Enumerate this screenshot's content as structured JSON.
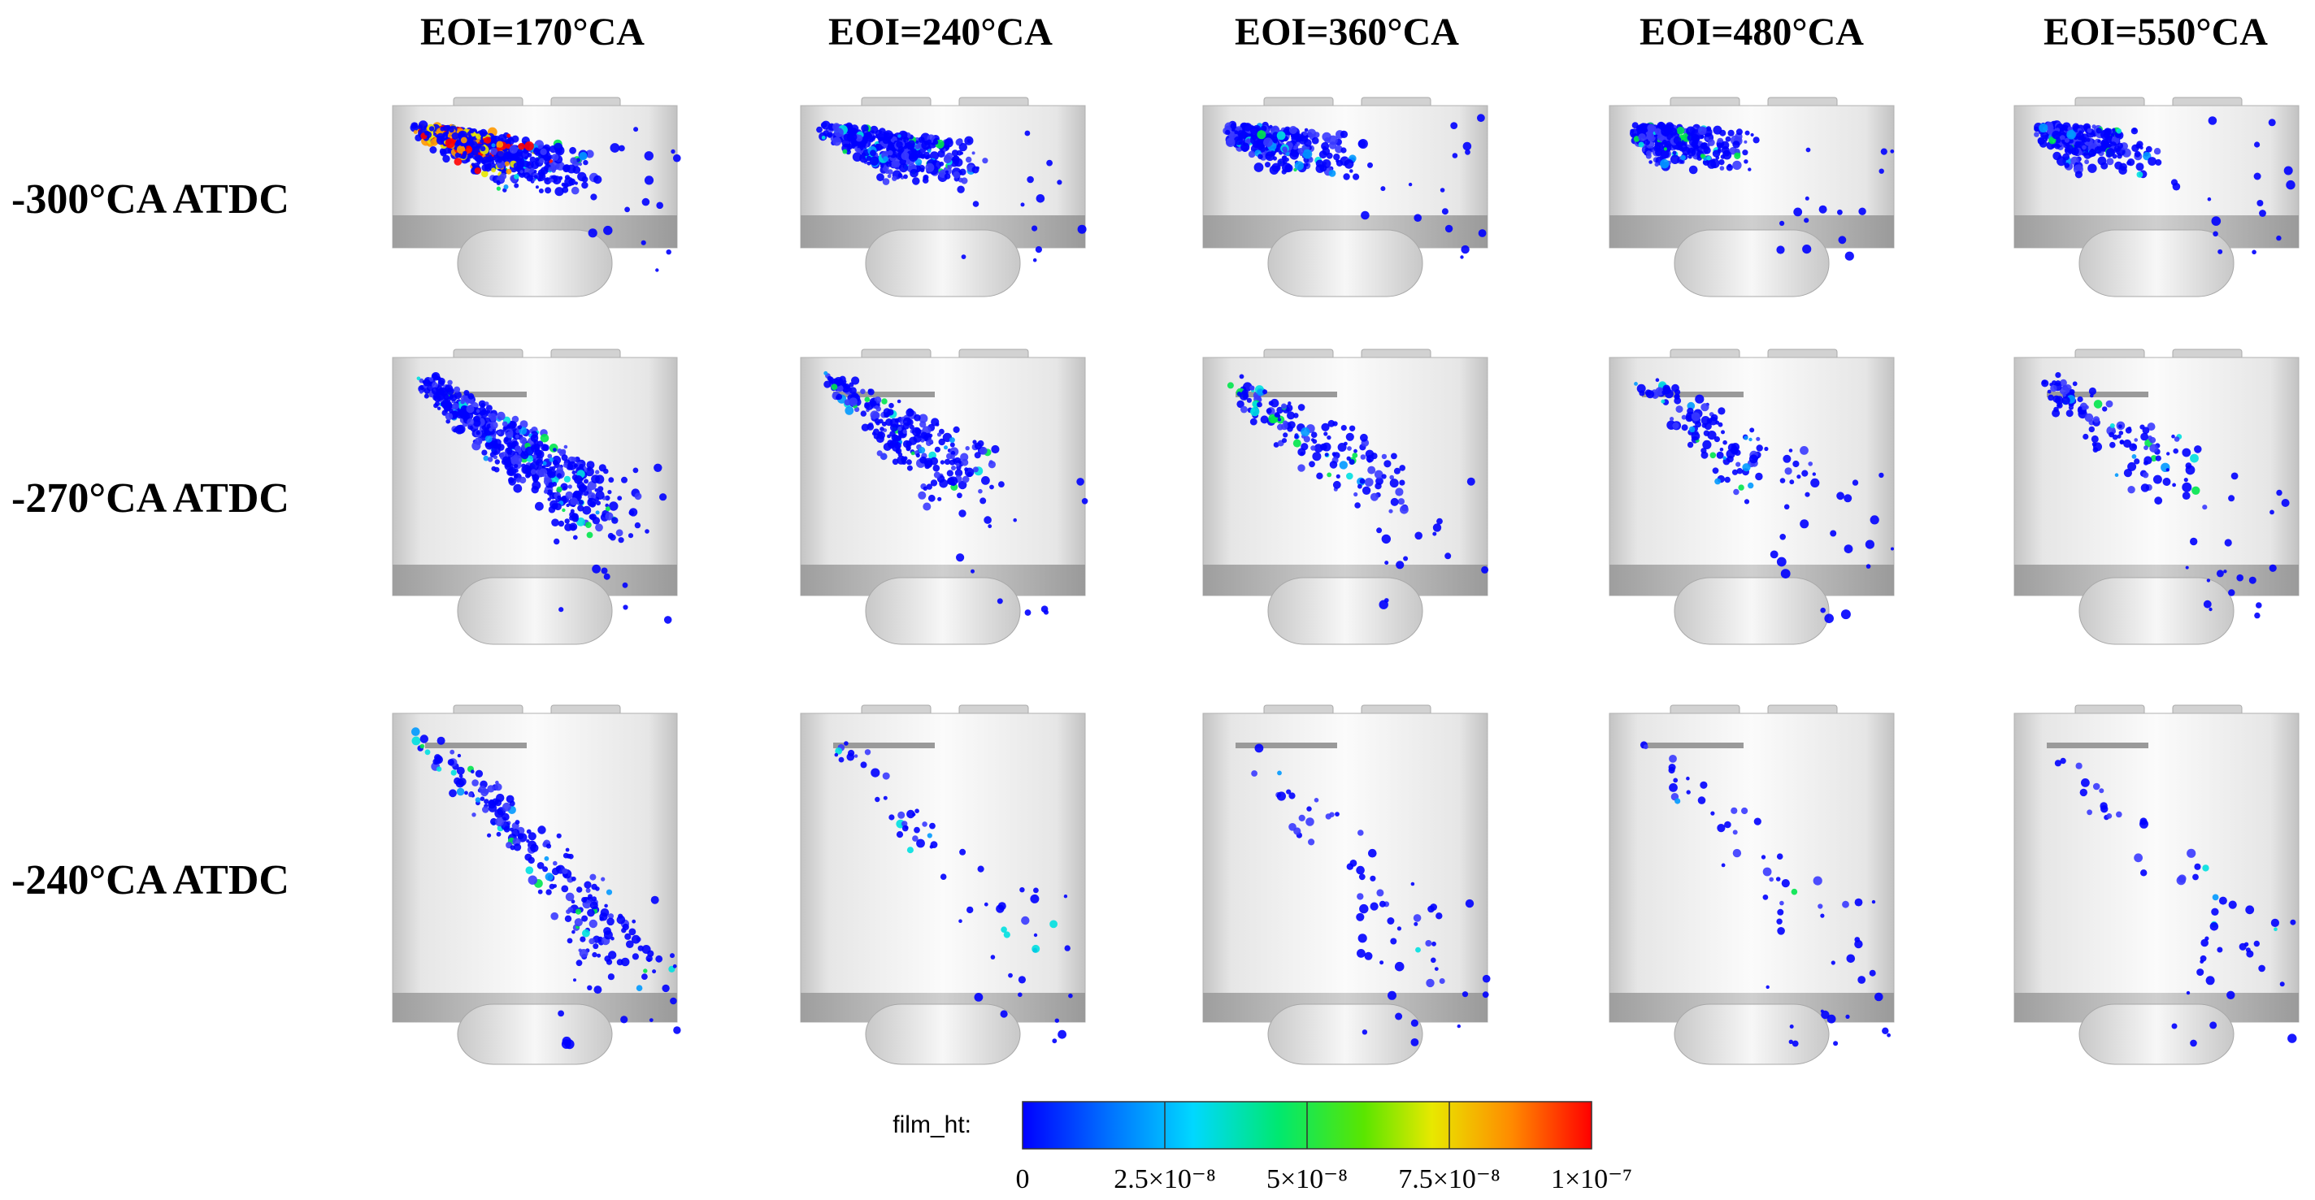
{
  "figure": {
    "columns": [
      "EOI=170°CA",
      "EOI=240°CA",
      "EOI=360°CA",
      "EOI=480°CA",
      "EOI=550°CA"
    ],
    "rows": [
      "-300°CA ATDC",
      "-270°CA ATDC",
      "-240°CA ATDC"
    ],
    "colorbar": {
      "label": "film_ht:",
      "min": 0,
      "max": 1e-07,
      "ticks": [
        {
          "value": 0,
          "text": "0"
        },
        {
          "value": 2.5e-08,
          "text": "2.5×10⁻⁸"
        },
        {
          "value": 5e-08,
          "text": "5×10⁻⁸"
        },
        {
          "value": 7.5e-08,
          "text": "7.5×10⁻⁸"
        },
        {
          "value": 1e-07,
          "text": "1×10⁻⁷"
        }
      ],
      "colors": [
        "#0000ff",
        "#0099ff",
        "#00e0e0",
        "#00e64d",
        "#66e600",
        "#e6e600",
        "#ff9900",
        "#ff0000"
      ]
    }
  }
}
